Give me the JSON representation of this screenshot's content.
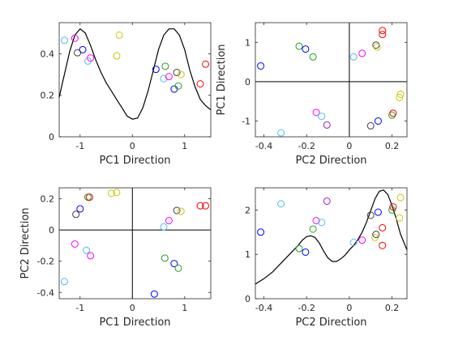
{
  "chart_data": [
    {
      "id": "top-left",
      "type": "scatter",
      "xlabel": "PC1 Direction",
      "ylabel": "",
      "xlim": [
        -1.4,
        1.5
      ],
      "ylim": [
        0,
        0.55
      ],
      "xticks": [
        -1,
        0,
        1
      ],
      "yticks": [
        0,
        0.2,
        0.4
      ],
      "zero_lines": false,
      "curve": {
        "color": "#000000",
        "x": [
          -1.4,
          -1.3,
          -1.2,
          -1.1,
          -1.0,
          -0.9,
          -0.8,
          -0.7,
          -0.6,
          -0.5,
          -0.4,
          -0.3,
          -0.2,
          -0.1,
          0.0,
          0.1,
          0.2,
          0.3,
          0.4,
          0.5,
          0.6,
          0.7,
          0.8,
          0.9,
          1.0,
          1.1,
          1.2,
          1.3,
          1.4,
          1.5
        ],
        "y": [
          0.19,
          0.3,
          0.41,
          0.49,
          0.52,
          0.5,
          0.44,
          0.37,
          0.31,
          0.26,
          0.22,
          0.18,
          0.14,
          0.1,
          0.085,
          0.09,
          0.14,
          0.22,
          0.32,
          0.42,
          0.49,
          0.52,
          0.52,
          0.49,
          0.42,
          0.32,
          0.24,
          0.18,
          0.15,
          0.13
        ]
      },
      "points": [
        {
          "x": -1.3,
          "y": 0.465,
          "color": "#4dbeee"
        },
        {
          "x": -1.1,
          "y": 0.475,
          "color": "#ff00ff"
        },
        {
          "x": -1.05,
          "y": 0.405,
          "color": "#3f3f3f"
        },
        {
          "x": -0.95,
          "y": 0.42,
          "color": "#0000ff"
        },
        {
          "x": -0.85,
          "y": 0.365,
          "color": "#4dbeee"
        },
        {
          "x": -0.8,
          "y": 0.38,
          "color": "#ff00ff"
        },
        {
          "x": -0.3,
          "y": 0.39,
          "color": "#c8c800"
        },
        {
          "x": -0.25,
          "y": 0.49,
          "color": "#c8c800"
        },
        {
          "x": 0.45,
          "y": 0.325,
          "color": "#0000ff"
        },
        {
          "x": 0.6,
          "y": 0.28,
          "color": "#4dbeee"
        },
        {
          "x": 0.63,
          "y": 0.34,
          "color": "#20a020"
        },
        {
          "x": 0.7,
          "y": 0.29,
          "color": "#ff00ff"
        },
        {
          "x": 0.8,
          "y": 0.23,
          "color": "#0000ff"
        },
        {
          "x": 0.85,
          "y": 0.31,
          "color": "#3f3f3f"
        },
        {
          "x": 0.88,
          "y": 0.245,
          "color": "#20a020"
        },
        {
          "x": 0.93,
          "y": 0.3,
          "color": "#c8c800"
        },
        {
          "x": 1.3,
          "y": 0.255,
          "color": "#ff0000"
        },
        {
          "x": 1.4,
          "y": 0.35,
          "color": "#ff0000"
        }
      ]
    },
    {
      "id": "top-right",
      "type": "scatter",
      "xlabel": "PC2 Direction",
      "ylabel": "PC1 Direction",
      "xlim": [
        -0.44,
        0.27
      ],
      "ylim": [
        -1.4,
        1.5
      ],
      "xticks": [
        -0.4,
        -0.2,
        0,
        0.2
      ],
      "yticks": [
        -1,
        0,
        1
      ],
      "zero_lines": true,
      "points": [
        {
          "x": -0.415,
          "y": 0.4,
          "color": "#0000ff"
        },
        {
          "x": -0.32,
          "y": -1.3,
          "color": "#4dbeee"
        },
        {
          "x": -0.235,
          "y": 0.9,
          "color": "#20a020"
        },
        {
          "x": -0.205,
          "y": 0.83,
          "color": "#0000ff"
        },
        {
          "x": -0.17,
          "y": 0.63,
          "color": "#20a020"
        },
        {
          "x": -0.155,
          "y": -0.78,
          "color": "#ff00ff"
        },
        {
          "x": -0.13,
          "y": -0.88,
          "color": "#4dbeee"
        },
        {
          "x": -0.105,
          "y": -1.1,
          "color": "#a020c0"
        },
        {
          "x": 0.02,
          "y": 0.63,
          "color": "#4dbeee"
        },
        {
          "x": 0.06,
          "y": 0.72,
          "color": "#ff00ff"
        },
        {
          "x": 0.1,
          "y": -1.12,
          "color": "#3f3f3f"
        },
        {
          "x": 0.125,
          "y": 0.93,
          "color": "#3f3f3f"
        },
        {
          "x": 0.13,
          "y": 0.88,
          "color": "#c8c800"
        },
        {
          "x": 0.135,
          "y": -1.0,
          "color": "#0000ff"
        },
        {
          "x": 0.155,
          "y": 1.3,
          "color": "#ff0000"
        },
        {
          "x": 0.155,
          "y": 1.2,
          "color": "#ff0000"
        },
        {
          "x": 0.2,
          "y": -0.85,
          "color": "#20a020"
        },
        {
          "x": 0.205,
          "y": -0.8,
          "color": "#ff0000"
        },
        {
          "x": 0.235,
          "y": -0.4,
          "color": "#c8c800"
        },
        {
          "x": 0.24,
          "y": -0.32,
          "color": "#c8c800"
        }
      ]
    },
    {
      "id": "bottom-left",
      "type": "scatter",
      "xlabel": "PC1 Direction",
      "ylabel": "PC2 Direction",
      "xlim": [
        -1.4,
        1.5
      ],
      "ylim": [
        -0.44,
        0.27
      ],
      "xticks": [
        -1,
        0,
        1
      ],
      "yticks": [
        -0.4,
        -0.2,
        0,
        0.2
      ],
      "zero_lines": true,
      "points": [
        {
          "x": -1.3,
          "y": -0.33,
          "color": "#4dbeee"
        },
        {
          "x": -1.1,
          "y": -0.09,
          "color": "#ff00ff"
        },
        {
          "x": -1.08,
          "y": 0.1,
          "color": "#3f3f3f"
        },
        {
          "x": -1.0,
          "y": 0.135,
          "color": "#0000ff"
        },
        {
          "x": -0.88,
          "y": -0.13,
          "color": "#4dbeee"
        },
        {
          "x": -0.85,
          "y": 0.21,
          "color": "#20a020"
        },
        {
          "x": -0.82,
          "y": 0.21,
          "color": "#ff0000"
        },
        {
          "x": -0.8,
          "y": -0.165,
          "color": "#ff00ff"
        },
        {
          "x": -0.4,
          "y": 0.235,
          "color": "#c8c800"
        },
        {
          "x": -0.3,
          "y": 0.24,
          "color": "#c8c800"
        },
        {
          "x": 0.42,
          "y": -0.41,
          "color": "#0000ff"
        },
        {
          "x": 0.6,
          "y": 0.02,
          "color": "#4dbeee"
        },
        {
          "x": 0.62,
          "y": -0.18,
          "color": "#20a020"
        },
        {
          "x": 0.7,
          "y": 0.06,
          "color": "#ff00ff"
        },
        {
          "x": 0.8,
          "y": -0.215,
          "color": "#0000ff"
        },
        {
          "x": 0.85,
          "y": 0.125,
          "color": "#3f3f3f"
        },
        {
          "x": 0.88,
          "y": -0.245,
          "color": "#20a020"
        },
        {
          "x": 0.93,
          "y": 0.12,
          "color": "#c8c800"
        },
        {
          "x": 1.3,
          "y": 0.155,
          "color": "#ff0000"
        },
        {
          "x": 1.4,
          "y": 0.155,
          "color": "#ff0000"
        }
      ]
    },
    {
      "id": "bottom-right",
      "type": "scatter",
      "xlabel": "PC2 Direction",
      "ylabel": "",
      "xlim": [
        -0.44,
        0.27
      ],
      "ylim": [
        0,
        2.5
      ],
      "xticks": [
        -0.4,
        -0.2,
        0,
        0.2
      ],
      "yticks": [
        0,
        1,
        2
      ],
      "zero_lines": false,
      "curve": {
        "color": "#000000",
        "x": [
          -0.44,
          -0.4,
          -0.36,
          -0.32,
          -0.28,
          -0.24,
          -0.22,
          -0.2,
          -0.18,
          -0.16,
          -0.14,
          -0.12,
          -0.1,
          -0.08,
          -0.06,
          -0.04,
          -0.02,
          0.0,
          0.02,
          0.04,
          0.06,
          0.08,
          0.1,
          0.12,
          0.14,
          0.16,
          0.18,
          0.2,
          0.22,
          0.24,
          0.27
        ],
        "y": [
          0.33,
          0.45,
          0.6,
          0.8,
          1.0,
          1.2,
          1.32,
          1.4,
          1.42,
          1.38,
          1.25,
          1.07,
          0.92,
          0.84,
          0.84,
          0.9,
          0.98,
          1.1,
          1.2,
          1.33,
          1.5,
          1.72,
          1.98,
          2.25,
          2.42,
          2.45,
          2.35,
          2.1,
          1.8,
          1.45,
          1.1
        ]
      },
      "points": [
        {
          "x": -0.415,
          "y": 1.5,
          "color": "#0000ff"
        },
        {
          "x": -0.32,
          "y": 2.14,
          "color": "#4dbeee"
        },
        {
          "x": -0.235,
          "y": 1.13,
          "color": "#20a020"
        },
        {
          "x": -0.205,
          "y": 1.05,
          "color": "#0000ff"
        },
        {
          "x": -0.17,
          "y": 1.57,
          "color": "#20a020"
        },
        {
          "x": -0.155,
          "y": 1.76,
          "color": "#ff00ff"
        },
        {
          "x": -0.13,
          "y": 1.72,
          "color": "#4dbeee"
        },
        {
          "x": -0.105,
          "y": 2.2,
          "color": "#a020c0"
        },
        {
          "x": 0.02,
          "y": 1.27,
          "color": "#4dbeee"
        },
        {
          "x": 0.06,
          "y": 1.32,
          "color": "#ff00ff"
        },
        {
          "x": 0.1,
          "y": 1.88,
          "color": "#3f3f3f"
        },
        {
          "x": 0.12,
          "y": 1.38,
          "color": "#c8c800"
        },
        {
          "x": 0.125,
          "y": 1.45,
          "color": "#3f3f3f"
        },
        {
          "x": 0.135,
          "y": 1.95,
          "color": "#0000ff"
        },
        {
          "x": 0.155,
          "y": 1.2,
          "color": "#ff0000"
        },
        {
          "x": 0.155,
          "y": 1.6,
          "color": "#ff0000"
        },
        {
          "x": 0.2,
          "y": 2.0,
          "color": "#20a020"
        },
        {
          "x": 0.205,
          "y": 2.07,
          "color": "#ff0000"
        },
        {
          "x": 0.235,
          "y": 1.82,
          "color": "#c8c800"
        },
        {
          "x": 0.24,
          "y": 2.28,
          "color": "#c8c800"
        }
      ]
    }
  ]
}
